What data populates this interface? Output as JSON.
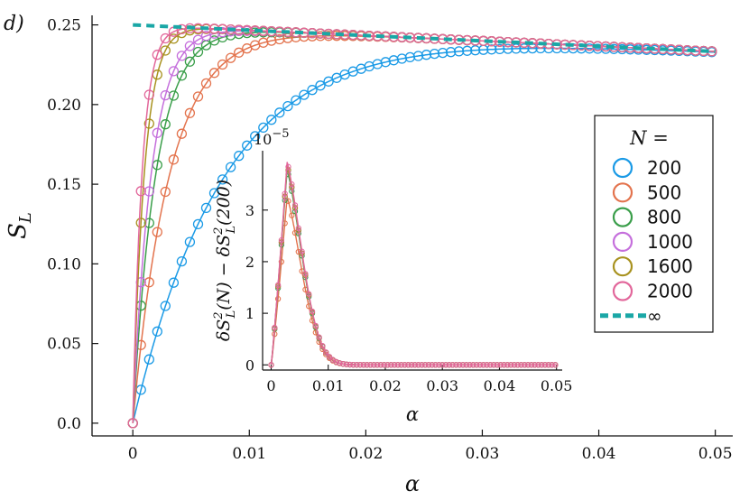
{
  "panel_label": "d)",
  "chart_data": [
    {
      "type": "line",
      "title": "",
      "xlabel": "α",
      "ylabel": "S_L",
      "xlim": [
        -0.0035,
        0.0515
      ],
      "ylim": [
        -0.008,
        0.256
      ],
      "grid": false,
      "x_ticks": [
        "0",
        "0.01",
        "0.02",
        "0.03",
        "0.04",
        "0.05"
      ],
      "y_ticks": [
        "0.0",
        "0.05",
        "0.10",
        "0.15",
        "0.20",
        "0.25"
      ],
      "x_tick_values": [
        0,
        0.01,
        0.02,
        0.03,
        0.04,
        0.05
      ],
      "y_tick_values": [
        0,
        0.05,
        0.1,
        0.15,
        0.2,
        0.25
      ],
      "legend_title": "N =",
      "legend_position": "right",
      "model": "S_L(α) = (0.25 − 0.334·α)·(1 − exp(−α·N/k))",
      "series": [
        {
          "name": "200",
          "color": "#1a9ae6",
          "k": 1.6,
          "marker_step": 0.0007
        },
        {
          "name": "500",
          "color": "#e3734d",
          "k": 1.6,
          "marker_step": 0.0007
        },
        {
          "name": "800",
          "color": "#3a9e4a",
          "k": 1.6,
          "marker_step": 0.0007
        },
        {
          "name": "1000",
          "color": "#c56fdc",
          "k": 1.6,
          "marker_step": 0.0007
        },
        {
          "name": "1600",
          "color": "#a8921f",
          "k": 1.6,
          "marker_step": 0.0007
        },
        {
          "name": "2000",
          "color": "#e2679b",
          "k": 1.6,
          "marker_step": 0.0007
        },
        {
          "name": "∞",
          "color": "#1aa7a6",
          "style": "dashed",
          "limit": true
        }
      ]
    },
    {
      "type": "line",
      "title": "",
      "xlabel": "α",
      "ylabel": "δS²_L(N) − δS²_L(200)",
      "y_scale_label": "10^-5",
      "xlim": [
        -0.0015,
        0.051
      ],
      "ylim": [
        -0.1,
        4.15
      ],
      "grid": false,
      "x_ticks": [
        "0",
        "0.01",
        "0.02",
        "0.03",
        "0.04",
        "0.05"
      ],
      "y_ticks": [
        "0",
        "1",
        "2",
        "3"
      ],
      "x_tick_values": [
        0,
        0.01,
        0.02,
        0.03,
        0.04,
        0.05
      ],
      "y_tick_values": [
        0,
        1,
        2,
        3
      ],
      "peak_alpha": 0.0028,
      "decay": 0.0032,
      "marker_step": 0.0006,
      "series": [
        {
          "name": "500",
          "color": "#e3734d",
          "peak": 3.25
        },
        {
          "name": "800",
          "color": "#3a9e4a",
          "peak": 3.78
        },
        {
          "name": "1000",
          "color": "#c56fdc",
          "peak": 3.85
        },
        {
          "name": "1600",
          "color": "#a8921f",
          "peak": 3.87
        },
        {
          "name": "2000",
          "color": "#e2679b",
          "peak": 3.93
        }
      ]
    }
  ]
}
